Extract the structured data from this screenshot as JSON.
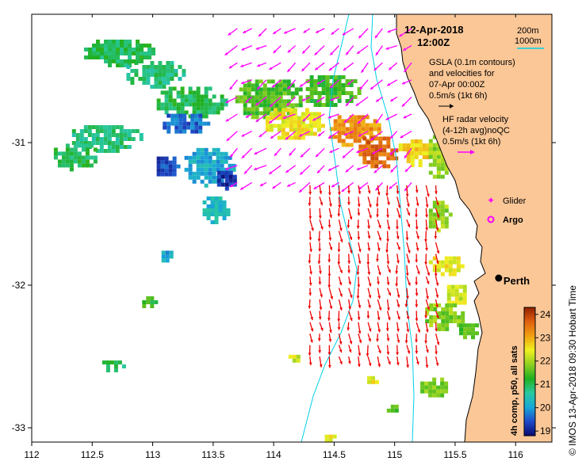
{
  "map": {
    "date": "12-Apr-2018",
    "time": "12:00Z",
    "bathymetry_legend": [
      "200m",
      "1000m"
    ],
    "gsla_note": [
      "GSLA (0.1m contours)",
      "and velocities for",
      "07-Apr 00:00Z",
      "0.5m/s (1kt 6h)"
    ],
    "hf_note": [
      "HF radar velocity",
      "(4-12h avg)noQC",
      "0.5m/s (1kt 6h)"
    ],
    "glider_label": "Glider",
    "argo_label": "Argo",
    "city_label": "Perth",
    "credit": "© IMOS 13-Apr-2018 09:30 Hobart Time",
    "colorbar_title": "4h comp, p50, all sats",
    "colorbar_ticks": [
      "24",
      "23",
      "22",
      "21",
      "20",
      "19"
    ],
    "colors": {
      "land": "#fbc797",
      "gsla_arrow": "#ff00ff",
      "hf_arrow": "#ee0000",
      "isobath": "#00d0e8",
      "colormap": [
        "#0a0a70",
        "#1f49c8",
        "#18a8d8",
        "#2ac8a0",
        "#20b020",
        "#90d020",
        "#f0f020",
        "#f0a010",
        "#e06010",
        "#902000"
      ]
    }
  },
  "chart_data": {
    "type": "map",
    "xlim": [
      112.0,
      116.3
    ],
    "ylim": [
      -33.1,
      -30.1
    ],
    "xticks": [
      "112",
      "112.5",
      "113",
      "113.5",
      "114",
      "114.5",
      "115",
      "115.5",
      "116"
    ],
    "yticks": [
      "-31",
      "-32",
      "-33"
    ],
    "colorbar_range": [
      18.8,
      24.3
    ],
    "city": {
      "lon": 115.86,
      "lat": -31.95
    },
    "patches": [
      {
        "lon": 112.7,
        "lat": -30.35,
        "rlon": 0.3,
        "rlat": 0.1,
        "v": 21.0
      },
      {
        "lon": 113.0,
        "lat": -30.5,
        "rlon": 0.25,
        "rlat": 0.1,
        "v": 20.8
      },
      {
        "lon": 113.3,
        "lat": -30.7,
        "rlon": 0.3,
        "rlat": 0.12,
        "v": 21.0
      },
      {
        "lon": 113.95,
        "lat": -30.68,
        "rlon": 0.3,
        "rlat": 0.15,
        "v": 21.5
      },
      {
        "lon": 114.45,
        "lat": -30.62,
        "rlon": 0.25,
        "rlat": 0.12,
        "v": 21.4
      },
      {
        "lon": 114.15,
        "lat": -30.85,
        "rlon": 0.25,
        "rlat": 0.12,
        "v": 22.5
      },
      {
        "lon": 114.65,
        "lat": -30.9,
        "rlon": 0.22,
        "rlat": 0.12,
        "v": 23.2
      },
      {
        "lon": 114.85,
        "lat": -31.05,
        "rlon": 0.18,
        "rlat": 0.12,
        "v": 23.6
      },
      {
        "lon": 115.15,
        "lat": -31.05,
        "rlon": 0.15,
        "rlat": 0.1,
        "v": 22.7
      },
      {
        "lon": 115.35,
        "lat": -31.08,
        "rlon": 0.1,
        "rlat": 0.16,
        "v": 21.9
      },
      {
        "lon": 113.25,
        "lat": -30.85,
        "rlon": 0.2,
        "rlat": 0.08,
        "v": 19.6
      },
      {
        "lon": 112.6,
        "lat": -30.95,
        "rlon": 0.3,
        "rlat": 0.1,
        "v": 20.8
      },
      {
        "lon": 112.35,
        "lat": -31.08,
        "rlon": 0.2,
        "rlat": 0.1,
        "v": 21.0
      },
      {
        "lon": 113.45,
        "lat": -31.15,
        "rlon": 0.22,
        "rlat": 0.14,
        "v": 20.1
      },
      {
        "lon": 113.6,
        "lat": -31.25,
        "rlon": 0.1,
        "rlat": 0.08,
        "v": 19.2
      },
      {
        "lon": 113.1,
        "lat": -31.15,
        "rlon": 0.1,
        "rlat": 0.08,
        "v": 19.4
      },
      {
        "lon": 113.5,
        "lat": -31.45,
        "rlon": 0.12,
        "rlat": 0.1,
        "v": 20.3
      },
      {
        "lon": 113.1,
        "lat": -31.78,
        "rlon": 0.06,
        "rlat": 0.05,
        "v": 20.1
      },
      {
        "lon": 112.95,
        "lat": -32.1,
        "rlon": 0.07,
        "rlat": 0.05,
        "v": 21.3
      },
      {
        "lon": 112.65,
        "lat": -32.55,
        "rlon": 0.1,
        "rlat": 0.05,
        "v": 21.0
      },
      {
        "lon": 115.35,
        "lat": -31.5,
        "rlon": 0.1,
        "rlat": 0.12,
        "v": 21.9
      },
      {
        "lon": 115.4,
        "lat": -31.85,
        "rlon": 0.15,
        "rlat": 0.08,
        "v": 22.5
      },
      {
        "lon": 115.5,
        "lat": -32.05,
        "rlon": 0.1,
        "rlat": 0.08,
        "v": 22.3
      },
      {
        "lon": 115.4,
        "lat": -32.2,
        "rlon": 0.18,
        "rlat": 0.1,
        "v": 21.8
      },
      {
        "lon": 115.6,
        "lat": -32.3,
        "rlon": 0.1,
        "rlat": 0.06,
        "v": 21.6
      },
      {
        "lon": 114.15,
        "lat": -32.5,
        "rlon": 0.06,
        "rlat": 0.04,
        "v": 22.3
      },
      {
        "lon": 114.8,
        "lat": -32.65,
        "rlon": 0.06,
        "rlat": 0.04,
        "v": 22.4
      },
      {
        "lon": 115.3,
        "lat": -32.7,
        "rlon": 0.12,
        "rlat": 0.08,
        "v": 21.8
      },
      {
        "lon": 114.95,
        "lat": -32.85,
        "rlon": 0.08,
        "rlat": 0.04,
        "v": 21.4
      },
      {
        "lon": 114.45,
        "lat": -33.05,
        "rlon": 0.06,
        "rlat": 0.03,
        "v": 22.5
      }
    ],
    "gsla_field": {
      "lon_range": [
        113.7,
        115.2
      ],
      "lat_range": [
        -31.3,
        -30.2
      ],
      "u": -0.28,
      "v": -0.2
    },
    "hf_field": {
      "lon_range": [
        114.3,
        115.5
      ],
      "lat_range": [
        -32.5,
        -31.3
      ],
      "u": 0.05,
      "v": -0.35
    }
  }
}
